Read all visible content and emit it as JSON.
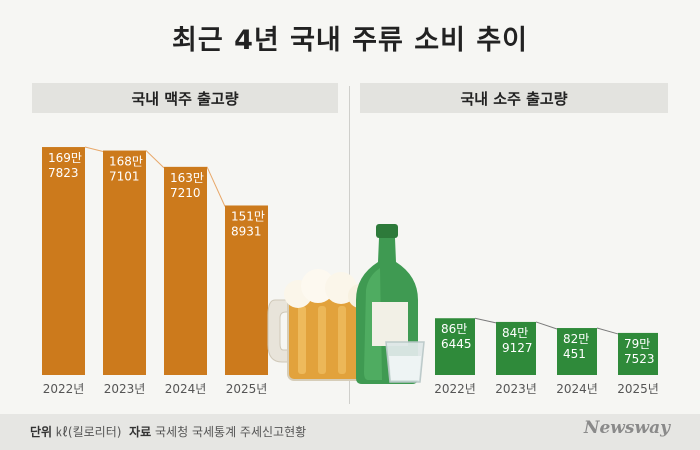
{
  "title": "최근 4년 국내 주류 소비 추이",
  "chart_data": [
    {
      "type": "bar",
      "title": "국내 맥주 출고량",
      "categories": [
        "2022년",
        "2023년",
        "2024년",
        "2025년"
      ],
      "values": [
        1697823,
        1687101,
        1637210,
        1518931
      ],
      "labels": [
        [
          "169만",
          "7823"
        ],
        [
          "168만",
          "7101"
        ],
        [
          "163만",
          "7210"
        ],
        [
          "151만",
          "8931"
        ]
      ],
      "color": "#cc7a1c",
      "ylim": [
        1000000,
        1750000
      ]
    },
    {
      "type": "bar",
      "title": "국내 소주 출고량",
      "categories": [
        "2022년",
        "2023년",
        "2024년",
        "2025년"
      ],
      "values": [
        866445,
        849127,
        820451,
        797523
      ],
      "labels": [
        [
          "86만",
          "6445"
        ],
        [
          "84만",
          "9127"
        ],
        [
          "82만",
          "451"
        ],
        [
          "79만",
          "7523"
        ]
      ],
      "color": "#2f8a3a",
      "ylim": [
        600000,
        1750000
      ]
    }
  ],
  "footer": {
    "unit_label": "단위",
    "unit_value": "㎘(킬로리터)",
    "source_label": "자료",
    "source_value": "국세청 국세통계 주세신고현황"
  },
  "logo": "Newsway",
  "colors": {
    "beer": "#cc7a1c",
    "soju": "#2f8a3a",
    "trend": "#e8a86a"
  },
  "icons": [
    "beer-mug-icon",
    "soju-bottle-icon",
    "shot-glass-icon"
  ]
}
